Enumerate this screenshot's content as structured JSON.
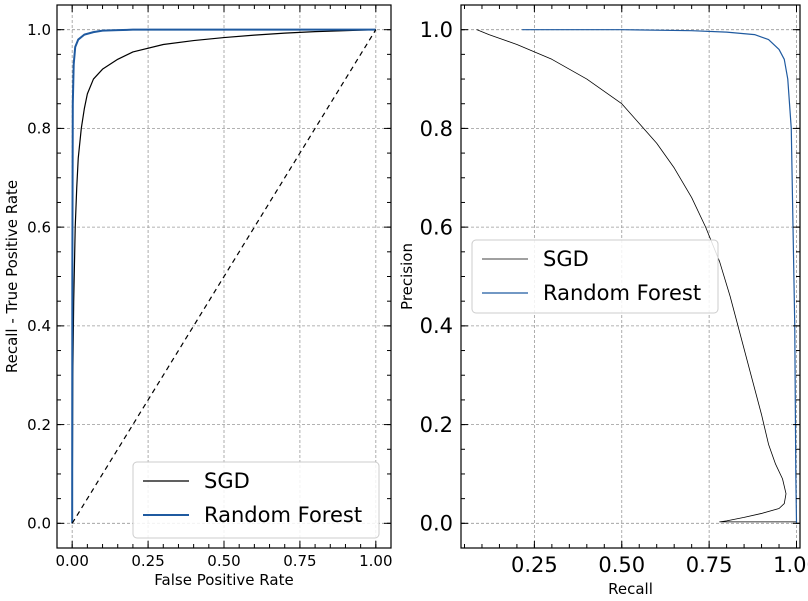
{
  "chart_data": [
    {
      "type": "line",
      "xlabel": "False Positive Rate",
      "ylabel": "Recall - True Positive Rate",
      "xlim": [
        -0.05,
        1.05
      ],
      "ylim": [
        -0.05,
        1.05
      ],
      "xticks": [
        0.0,
        0.25,
        0.5,
        0.75,
        1.0
      ],
      "xtick_labels": [
        "0.00",
        "0.25",
        "0.50",
        "0.75",
        "1.00"
      ],
      "yticks": [
        0.0,
        0.2,
        0.4,
        0.6,
        0.8,
        1.0
      ],
      "ytick_labels": [
        "0.0",
        "0.2",
        "0.4",
        "0.6",
        "0.8",
        "1.0"
      ],
      "grid": true,
      "legend": "lower-right",
      "series": [
        {
          "name": "SGD",
          "color": "#000000",
          "x": [
            0,
            0.002,
            0.005,
            0.01,
            0.015,
            0.02,
            0.03,
            0.04,
            0.05,
            0.07,
            0.1,
            0.15,
            0.2,
            0.3,
            0.4,
            0.5,
            0.6,
            0.7,
            0.8,
            0.9,
            1.0
          ],
          "y": [
            0,
            0.3,
            0.45,
            0.6,
            0.68,
            0.74,
            0.8,
            0.84,
            0.87,
            0.9,
            0.92,
            0.94,
            0.955,
            0.97,
            0.978,
            0.984,
            0.989,
            0.993,
            0.996,
            0.998,
            1.0
          ]
        },
        {
          "name": "Random Forest",
          "color": "#1f5aa0",
          "x": [
            0,
            0.0005,
            0.002,
            0.005,
            0.01,
            0.02,
            0.04,
            0.07,
            0.1,
            0.15,
            0.2,
            1.0
          ],
          "y": [
            0,
            0.5,
            0.85,
            0.93,
            0.965,
            0.98,
            0.99,
            0.995,
            0.998,
            0.999,
            1.0,
            1.0
          ]
        },
        {
          "name": "",
          "color": "#000000",
          "dashed": true,
          "x": [
            0,
            1
          ],
          "y": [
            0,
            1
          ]
        }
      ]
    },
    {
      "type": "line",
      "xlabel": "Recall",
      "ylabel": "Precision",
      "xlim": [
        0.04,
        1.01
      ],
      "ylim": [
        -0.05,
        1.05
      ],
      "xticks": [
        0.25,
        0.5,
        0.75,
        1.0
      ],
      "xtick_labels": [
        "0.25",
        "0.50",
        "0.75",
        "1.00"
      ],
      "yticks": [
        0.0,
        0.2,
        0.4,
        0.6,
        0.8,
        1.0
      ],
      "ytick_labels": [
        "0.0",
        "0.2",
        "0.4",
        "0.6",
        "0.8",
        "1.0"
      ],
      "grid": true,
      "legend": "center-right",
      "series": [
        {
          "name": "SGD",
          "color": "#000000",
          "x": [
            0.085,
            0.12,
            0.2,
            0.3,
            0.4,
            0.5,
            0.6,
            0.65,
            0.7,
            0.74,
            0.78,
            0.81,
            0.84,
            0.87,
            0.9,
            0.92,
            0.94,
            0.96,
            0.97,
            0.965,
            0.95,
            0.9,
            0.85,
            0.8,
            0.78,
            0.85,
            1.0
          ],
          "y": [
            1.0,
            0.99,
            0.97,
            0.94,
            0.9,
            0.85,
            0.77,
            0.72,
            0.66,
            0.6,
            0.53,
            0.46,
            0.38,
            0.3,
            0.22,
            0.16,
            0.12,
            0.09,
            0.06,
            0.04,
            0.03,
            0.02,
            0.012,
            0.005,
            0.003,
            0.003,
            0.003
          ]
        },
        {
          "name": "Random Forest",
          "color": "#1f5aa0",
          "x": [
            0.215,
            0.3,
            0.5,
            0.7,
            0.8,
            0.88,
            0.92,
            0.95,
            0.965,
            0.975,
            0.985,
            0.99,
            0.995,
            0.997,
            0.998,
            0.999,
            1.0
          ],
          "y": [
            1.0,
            1.0,
            1.0,
            0.998,
            0.995,
            0.99,
            0.98,
            0.96,
            0.94,
            0.9,
            0.8,
            0.6,
            0.4,
            0.2,
            0.1,
            0.05,
            0.0
          ]
        }
      ]
    }
  ]
}
